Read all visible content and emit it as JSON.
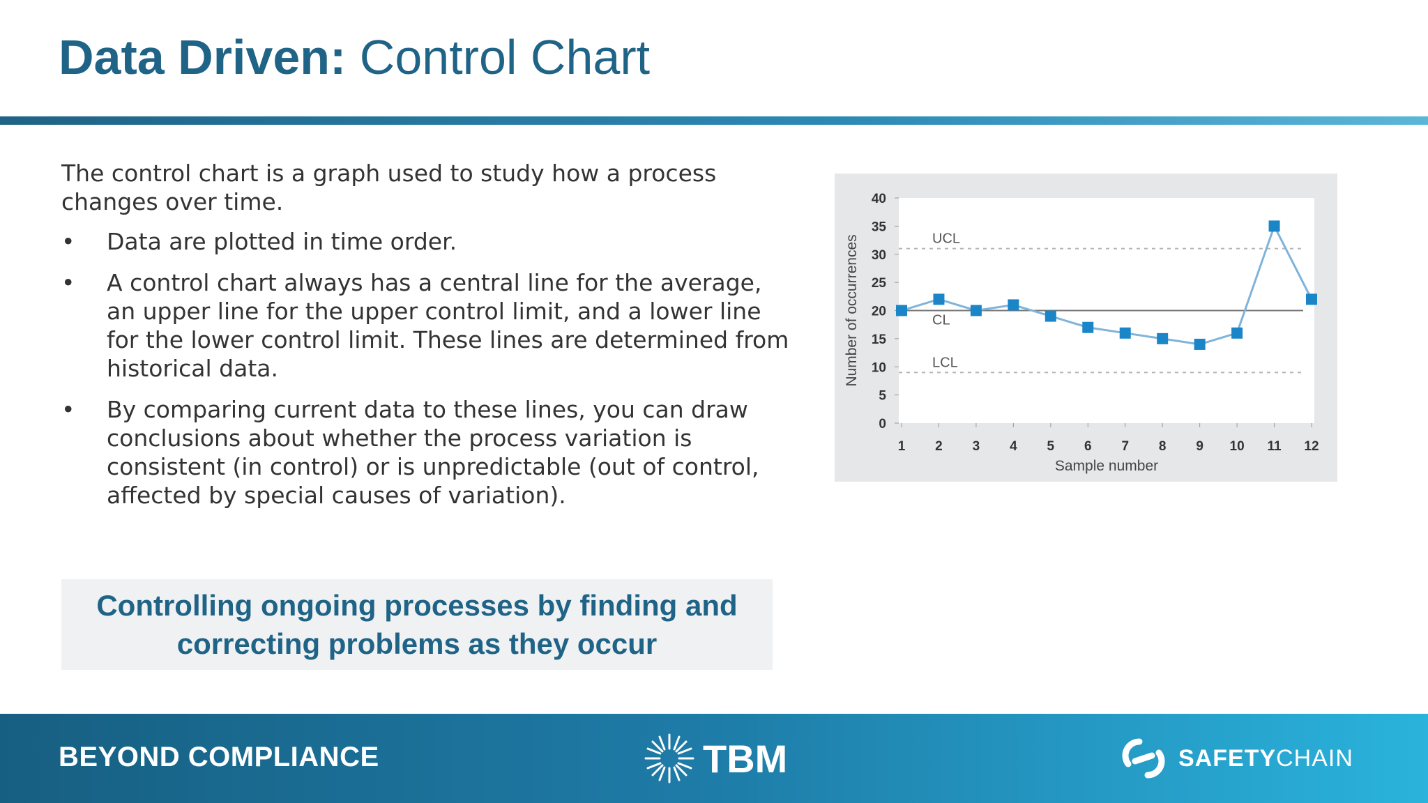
{
  "header": {
    "title_bold": "Data Driven:",
    "title_rest": "Control Chart"
  },
  "content": {
    "intro": "The control chart is a graph used to study how a process changes over time.",
    "bullets": [
      "Data are plotted in time order.",
      "A control chart always has a central line for the average, an upper line for the upper control limit, and a lower line for the lower control limit. These lines are determined from historical data.",
      "By comparing current data to these lines, you can draw conclusions about whether the process variation is consistent (in control) or is unpredictable (out of control, affected by special causes of variation)."
    ],
    "bullet_symbol": "•",
    "callout": "Controlling ongoing processes by finding and correcting problems as they occur"
  },
  "footer": {
    "left_text": "BEYOND COMPLIANCE",
    "tbm_text": "TBM",
    "tbm_icon": "starburst-icon",
    "safetychain_text_a": "SAFETY",
    "safetychain_text_b": "CHAIN",
    "safetychain_icon": "chain-link-icon"
  },
  "colors": {
    "title": "#1f6386",
    "accent": "#1f6386",
    "series": "#1a86c8",
    "line": "#7fb3d9",
    "footer_start": "#175f82",
    "footer_end": "#2ab3dc"
  },
  "chart_data": {
    "type": "line",
    "xlabel": "Sample number",
    "ylabel": "Number of occurrences",
    "x": [
      1,
      2,
      3,
      4,
      5,
      6,
      7,
      8,
      9,
      10,
      11,
      12
    ],
    "series": [
      {
        "values": [
          20,
          22,
          20,
          21,
          19,
          17,
          16,
          15,
          14,
          16,
          35,
          22
        ]
      }
    ],
    "ylim": [
      0,
      40
    ],
    "yticks": [
      0,
      5,
      10,
      15,
      20,
      25,
      30,
      35,
      40
    ],
    "control_lines": [
      {
        "label": "UCL",
        "value": 31,
        "style": "dashed"
      },
      {
        "label": "CL",
        "value": 20,
        "style": "solid"
      },
      {
        "label": "LCL",
        "value": 9,
        "style": "dashed"
      }
    ],
    "grid": false
  }
}
